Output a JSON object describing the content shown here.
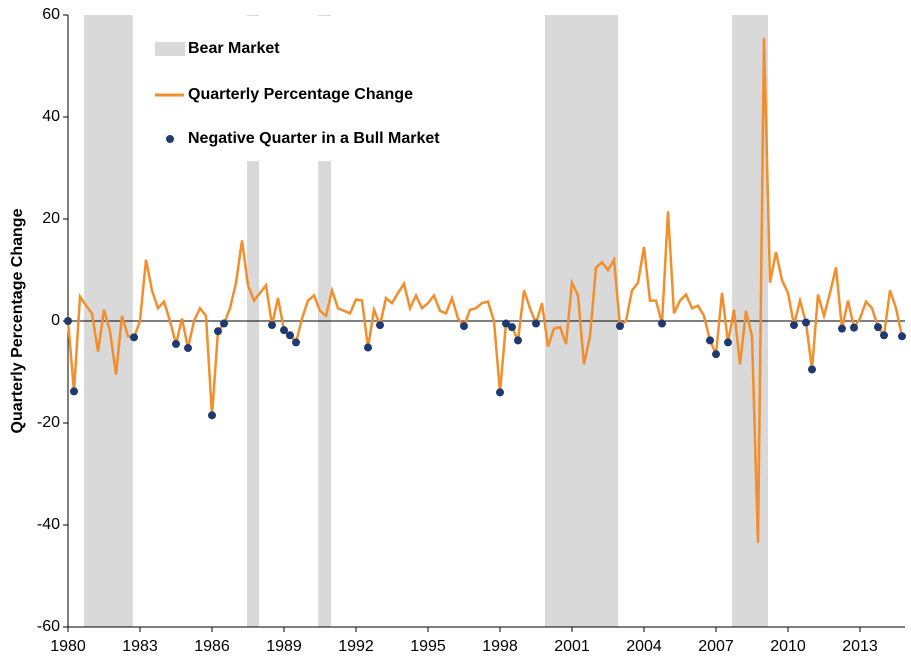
{
  "chart_data": {
    "type": "line",
    "y_label": "Quarterly Percentage Change",
    "xlim": [
      1980,
      2014.875
    ],
    "xticks": [
      1980,
      1983,
      1986,
      1989,
      1992,
      1995,
      1998,
      2001,
      2004,
      2007,
      2010,
      2013
    ],
    "ylim": [
      -60,
      60
    ],
    "yticks": [
      -60,
      -40,
      -20,
      0,
      20,
      40,
      60
    ],
    "legend": "upper left",
    "bands": {
      "name": "Bear Market",
      "color": "#d9d9d9",
      "ranges": [
        [
          1980.67,
          1982.7
        ],
        [
          1987.46,
          1987.96
        ],
        [
          1990.42,
          1990.96
        ],
        [
          1999.875,
          2002.92
        ],
        [
          2007.67,
          2009.17
        ]
      ]
    },
    "series": [
      {
        "name": "Quarterly Percentage Change",
        "type": "line",
        "color": "#f28e2b",
        "x": [
          1980,
          1980.25,
          1980.5,
          1980.75,
          1981,
          1981.25,
          1981.5,
          1981.75,
          1982,
          1982.25,
          1982.5,
          1982.75,
          1983,
          1983.25,
          1983.5,
          1983.75,
          1984,
          1984.25,
          1984.5,
          1984.75,
          1985,
          1985.25,
          1985.5,
          1985.75,
          1986,
          1986.25,
          1986.5,
          1986.75,
          1987,
          1987.25,
          1987.5,
          1987.75,
          1988,
          1988.25,
          1988.5,
          1988.75,
          1989,
          1989.25,
          1989.5,
          1989.75,
          1990,
          1990.25,
          1990.5,
          1990.75,
          1991,
          1991.25,
          1991.5,
          1991.75,
          1992,
          1992.25,
          1992.5,
          1992.75,
          1993,
          1993.25,
          1993.5,
          1993.75,
          1994,
          1994.25,
          1994.5,
          1994.75,
          1995,
          1995.25,
          1995.5,
          1995.75,
          1996,
          1996.25,
          1996.5,
          1996.75,
          1997,
          1997.25,
          1997.5,
          1997.75,
          1998,
          1998.25,
          1998.5,
          1998.75,
          1999,
          1999.25,
          1999.5,
          1999.75,
          2000,
          2000.25,
          2000.5,
          2000.75,
          2001,
          2001.25,
          2001.5,
          2001.75,
          2002,
          2002.25,
          2002.5,
          2002.75,
          2003,
          2003.25,
          2003.5,
          2003.75,
          2004,
          2004.25,
          2004.5,
          2004.75,
          2005,
          2005.25,
          2005.5,
          2005.75,
          2006,
          2006.25,
          2006.5,
          2006.75,
          2007,
          2007.25,
          2007.5,
          2007.75,
          2008,
          2008.25,
          2008.5,
          2008.75,
          2009,
          2009.25,
          2009.5,
          2009.75,
          2010,
          2010.25,
          2010.5,
          2010.75,
          2011,
          2011.25,
          2011.5,
          2011.75,
          2012,
          2012.25,
          2012.5,
          2012.75,
          2013,
          2013.25,
          2013.5,
          2013.75,
          2014,
          2014.25,
          2014.5,
          2014.75
        ],
        "values": [
          0,
          -13.8,
          4.8,
          3,
          1.5,
          -6,
          2.2,
          -2,
          -10.5,
          1,
          -3,
          -3.2,
          0,
          12,
          6,
          2.5,
          3.8,
          0,
          -4.5,
          0.5,
          -5.3,
          0,
          2.5,
          1,
          -18.5,
          -2,
          -0.5,
          2.5,
          7.5,
          15.8,
          7,
          4,
          5.5,
          7,
          -0.8,
          4.5,
          -1.8,
          -2.8,
          -4.2,
          0.5,
          4,
          5,
          2,
          1,
          6,
          2.5,
          2,
          1.5,
          4.2,
          4,
          -5.2,
          2.2,
          -0.8,
          4.5,
          3.5,
          5.5,
          7.3,
          2.5,
          5,
          2.5,
          3.5,
          5,
          2,
          1.5,
          4.5,
          0.5,
          -1,
          2.2,
          2.5,
          3.5,
          3.8,
          0,
          -14,
          -0.5,
          -1.2,
          -3.8,
          6,
          2.5,
          -0.5,
          3.5,
          -5,
          -1.5,
          -1.2,
          -4.5,
          7.5,
          5,
          -8.5,
          -3,
          10.5,
          11.5,
          10,
          12,
          -1,
          0,
          6,
          7.5,
          14.5,
          4,
          4,
          -0.5,
          21.5,
          1.5,
          4,
          5.2,
          2.5,
          3,
          1,
          -3.8,
          -6.5,
          5.5,
          -4.2,
          2.2,
          -8.5,
          2,
          -3,
          -43.5,
          55.5,
          7.5,
          13.5,
          8,
          5.5,
          -0.8,
          4,
          -0.3,
          -9.5,
          5.2,
          1,
          5.5,
          10.5,
          -1.5,
          4,
          -1.3,
          0.5,
          3.8,
          2.5,
          -1.2,
          -2.8,
          6,
          2.5,
          -3
        ]
      },
      {
        "name": "Negative Quarter in a Bull Market",
        "type": "scatter",
        "color": "#1f3a70",
        "x": [
          1980,
          1980.25,
          1982.75,
          1984.5,
          1985,
          1986,
          1986.25,
          1986.5,
          1988.5,
          1989,
          1989.25,
          1989.5,
          1992.5,
          1993,
          1996.5,
          1998,
          1998.25,
          1998.5,
          1998.75,
          1999.5,
          2003,
          2004.75,
          2006.75,
          2007,
          2007.5,
          2010.25,
          2010.75,
          2011,
          2012.25,
          2012.75,
          2013.75,
          2014,
          2014.75
        ],
        "values": [
          0,
          -13.8,
          -3.2,
          -4.5,
          -5.3,
          -18.5,
          -2,
          -0.5,
          -0.8,
          -1.8,
          -2.8,
          -4.2,
          -5.2,
          -0.8,
          -1,
          -14,
          -0.5,
          -1.2,
          -3.8,
          -0.5,
          -1,
          -0.5,
          -3.8,
          -6.5,
          -4.2,
          -0.8,
          -0.3,
          -9.5,
          -1.5,
          -1.3,
          -1.2,
          -2.8,
          -3
        ]
      }
    ]
  }
}
